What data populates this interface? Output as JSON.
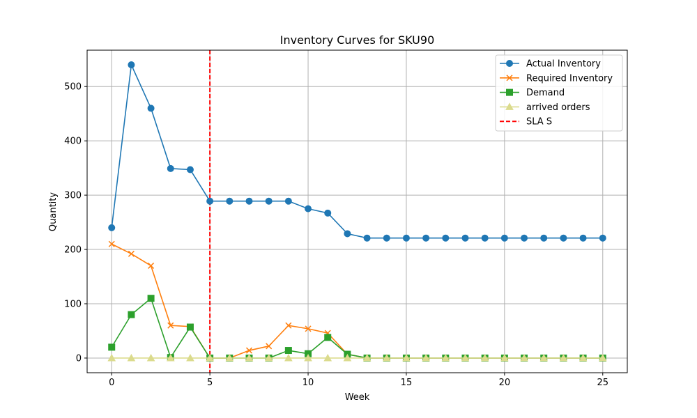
{
  "chart_data": {
    "type": "line",
    "title": "Inventory Curves for SKU90",
    "xlabel": "Week",
    "ylabel": "Quantity",
    "xlim": [
      -1.25,
      26.25
    ],
    "ylim": [
      -27,
      567
    ],
    "xticks": [
      0,
      5,
      10,
      15,
      20,
      25
    ],
    "yticks": [
      0,
      100,
      200,
      300,
      400,
      500
    ],
    "grid": true,
    "legend_position": "top-right",
    "x": [
      0,
      1,
      2,
      3,
      4,
      5,
      6,
      7,
      8,
      9,
      10,
      11,
      12,
      13,
      14,
      15,
      16,
      17,
      18,
      19,
      20,
      21,
      22,
      23,
      24,
      25
    ],
    "series": [
      {
        "name": "Actual Inventory",
        "color": "#1f77b4",
        "marker": "circle",
        "values": [
          240,
          540,
          460,
          349,
          347,
          289,
          289,
          289,
          289,
          289,
          275,
          267,
          229,
          221,
          221,
          221,
          221,
          221,
          221,
          221,
          221,
          221,
          221,
          221,
          221,
          221
        ]
      },
      {
        "name": "Required Inventory",
        "color": "#ff7f0e",
        "marker": "x",
        "values": [
          210,
          192,
          170,
          60,
          58,
          0,
          0,
          14,
          22,
          60,
          54,
          46,
          7,
          0,
          0,
          0,
          0,
          0,
          0,
          0,
          0,
          0,
          0,
          0,
          0,
          0
        ]
      },
      {
        "name": "Demand",
        "color": "#2ca02c",
        "marker": "square",
        "values": [
          20,
          80,
          110,
          1,
          57,
          0,
          0,
          0,
          0,
          14,
          8,
          38,
          7,
          0,
          0,
          0,
          0,
          0,
          0,
          0,
          0,
          0,
          0,
          0,
          0,
          0
        ]
      },
      {
        "name": "arrived orders",
        "color": "#dbdb8d",
        "marker": "triangle",
        "values": [
          0,
          0,
          0,
          0,
          0,
          0,
          0,
          0,
          0,
          0,
          0,
          0,
          0,
          0,
          0,
          0,
          0,
          0,
          0,
          0,
          0,
          0,
          0,
          0,
          0,
          0
        ]
      }
    ],
    "vlines": [
      {
        "name": "SLA S",
        "x": 5,
        "color": "#ff0000",
        "style": "dashed"
      }
    ]
  }
}
